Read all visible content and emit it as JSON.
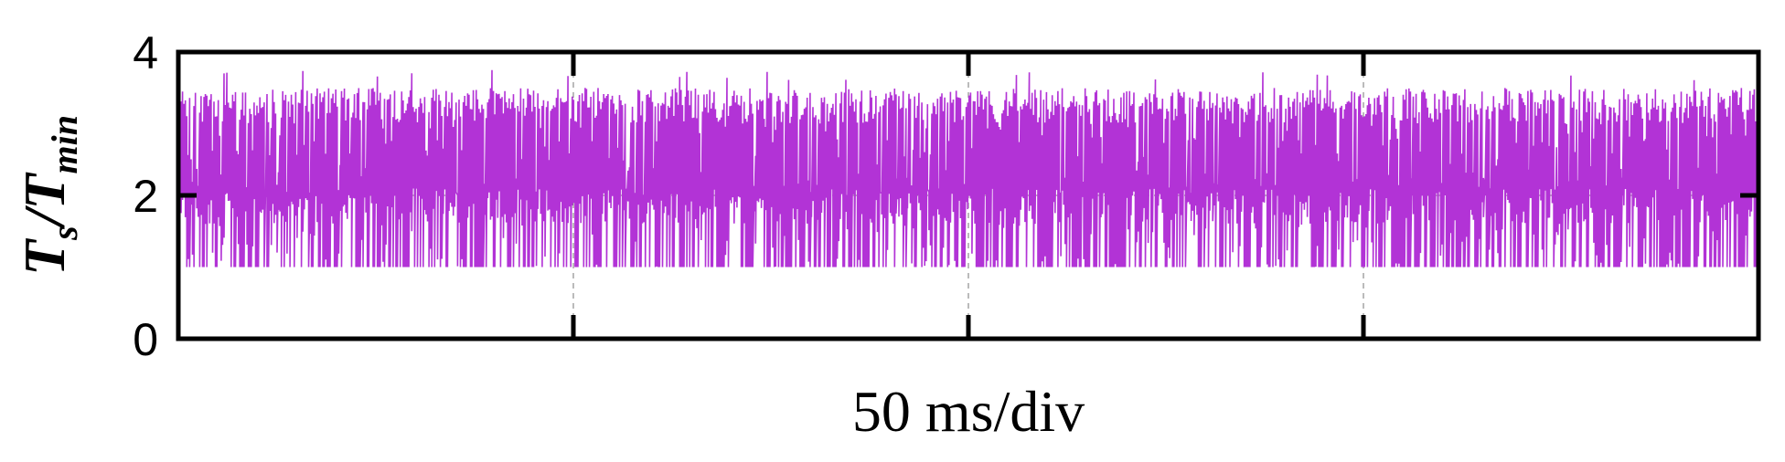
{
  "chart_data": {
    "type": "line",
    "title": "",
    "xlabel": "50 ms/div",
    "ylabel": {
      "numerator": "T",
      "numerator_sub": "s",
      "slash": "/",
      "denominator": "T",
      "denominator_sub": "min"
    },
    "ylim": [
      0,
      4
    ],
    "yticks": [
      {
        "value": 0,
        "label": "0"
      },
      {
        "value": 2,
        "label": "2"
      },
      {
        "value": 4,
        "label": "4"
      }
    ],
    "x_divisions": 4,
    "grid": true,
    "grid_lines": {
      "vertical_divisions": [
        1,
        2,
        3
      ],
      "horizontal_values": [
        2
      ]
    },
    "series": [
      {
        "color": "#b233d6",
        "min": 1.0,
        "max": 3.75,
        "typical_range": [
          1.0,
          3.5
        ],
        "mean": 2.0,
        "description_points": 1100
      }
    ]
  }
}
